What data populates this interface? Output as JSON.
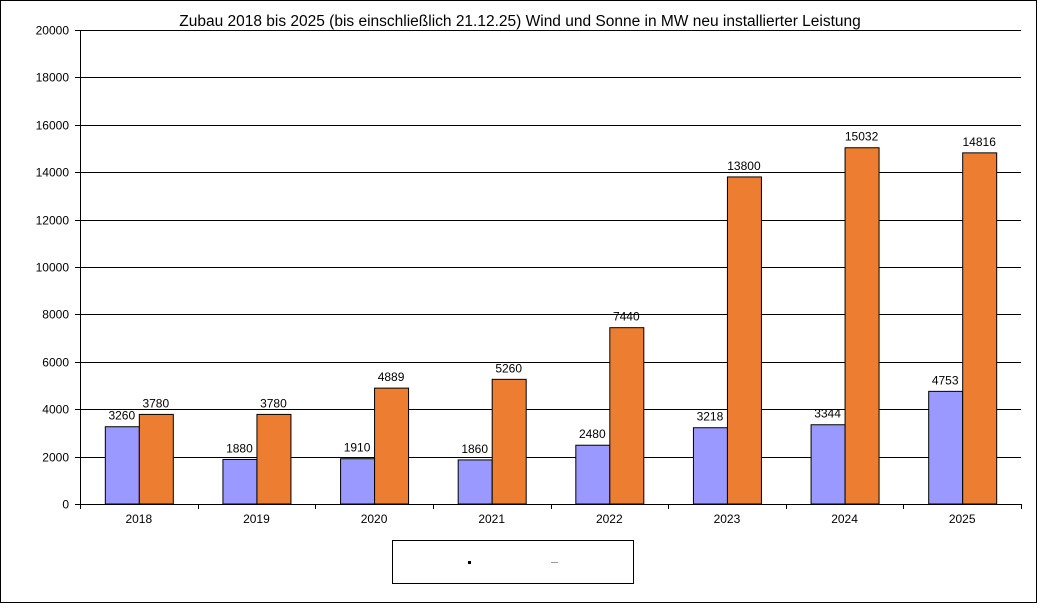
{
  "chart_data": {
    "type": "bar",
    "title": "Zubau 2018 bis 2025 (bis einschließlich 21.12.25) Wind und Sonne in MW neu installierter Leistung",
    "xlabel": "",
    "ylabel": "",
    "categories": [
      "2018",
      "2019",
      "2020",
      "2021",
      "2022",
      "2023",
      "2024",
      "2025"
    ],
    "series": [
      {
        "values": [
          3260,
          1880,
          1910,
          1860,
          2480,
          3218,
          3344,
          4753
        ],
        "color": "#9999ff"
      },
      {
        "values": [
          3780,
          3780,
          4889,
          5260,
          7440,
          13800,
          15032,
          14816
        ],
        "color": "#ed7d31"
      }
    ],
    "ylim": [
      0,
      20000
    ],
    "yticks": [
      0,
      2000,
      4000,
      6000,
      8000,
      10000,
      12000,
      14000,
      16000,
      18000,
      20000
    ],
    "grid": true,
    "legend": "bottom"
  }
}
